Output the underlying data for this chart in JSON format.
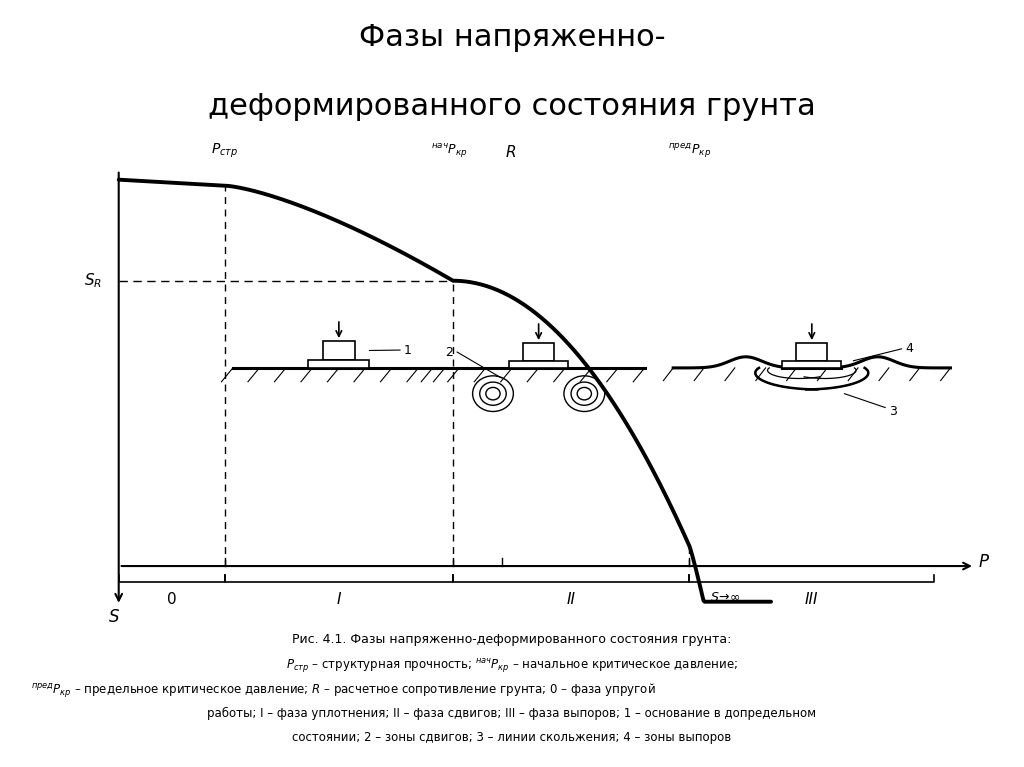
{
  "title_line1": "Фазы напряженно-",
  "title_line2": "деформированного состояния грунта",
  "title_fontsize": 22,
  "bg_color": "#ffffff",
  "p_str": 0.13,
  "p_nach_kr": 0.41,
  "R_val": 0.47,
  "p_pred_kr": 0.7,
  "SR_level": 0.72,
  "caption_lines": [
    "Рис. 4.1. Фазы напряженно-деформированного состояния грунта:",
    "$P_{стр}$ – структурная прочность; $^{нач}P_{кр}$ – начальное критическое давление;",
    "$^{пред}P_{кр}$ – предельное критическое давление; $R$ – расчетное сопротивление грунта; 0 – фаза упругой",
    "работы; I – фаза уплотнения; II – фаза сдвигов; III – фаза выпоров; 1 – основание в допредельном",
    "состоянии; 2 – зоны сдвигов; 3 – линии скольжения; 4 – зоны выпоров"
  ]
}
